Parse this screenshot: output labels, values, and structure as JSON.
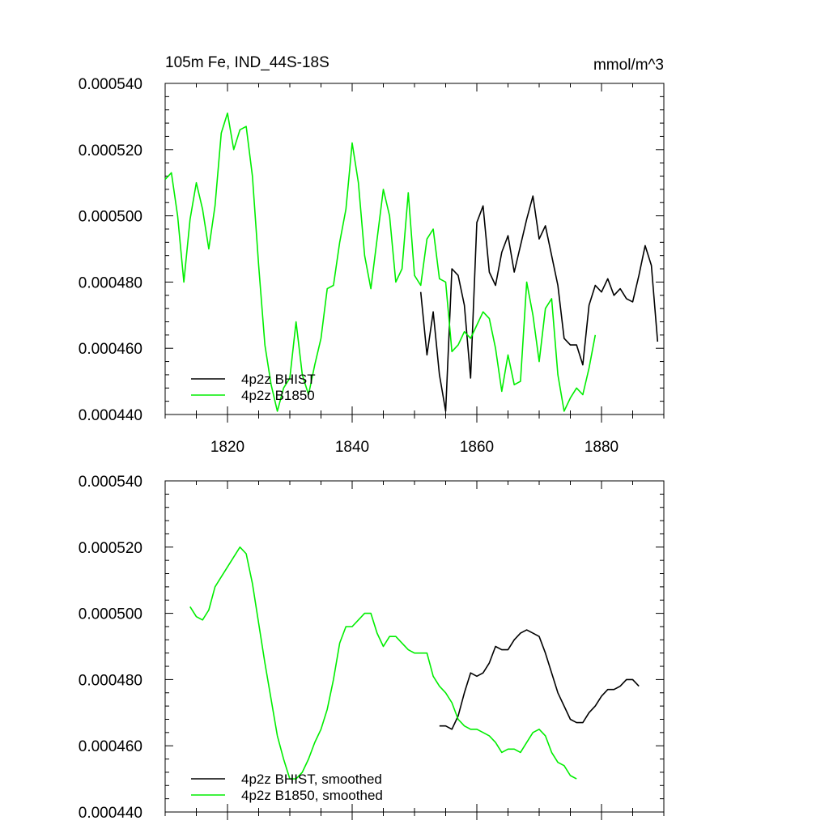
{
  "chart_data": [
    {
      "type": "line",
      "title_left": "105m Fe, IND_44S-18S",
      "title_right": "mmol/m^3",
      "xlim": [
        1810,
        1890
      ],
      "ylim": [
        0.00044,
        0.00054
      ],
      "yticks": [
        "0.000440",
        "0.000460",
        "0.000480",
        "0.000500",
        "0.000520",
        "0.000540"
      ],
      "xticks": [
        "1820",
        "1840",
        "1860",
        "1880"
      ],
      "show_xtick_labels": true,
      "grid": false,
      "legend_position": "bottom-left",
      "series": [
        {
          "name": "4p2z BHIST",
          "color": "#000000",
          "x": [
            1851,
            1852,
            1853,
            1854,
            1855,
            1856,
            1857,
            1858,
            1859,
            1860,
            1861,
            1862,
            1863,
            1864,
            1865,
            1866,
            1867,
            1868,
            1869,
            1870,
            1871,
            1872,
            1873,
            1874,
            1875,
            1876,
            1877,
            1878,
            1879,
            1880,
            1881,
            1882,
            1883,
            1884,
            1885,
            1886,
            1887,
            1888,
            1889
          ],
          "values": [
            0.000477,
            0.000458,
            0.000471,
            0.000452,
            0.000441,
            0.000484,
            0.000482,
            0.000473,
            0.000451,
            0.000498,
            0.000503,
            0.000483,
            0.000479,
            0.000489,
            0.000494,
            0.000483,
            0.000491,
            0.000499,
            0.000506,
            0.000493,
            0.000497,
            0.000488,
            0.000479,
            0.000463,
            0.000461,
            0.000461,
            0.000455,
            0.000473,
            0.000479,
            0.000477,
            0.000481,
            0.000476,
            0.000478,
            0.000475,
            0.000474,
            0.000482,
            0.000491,
            0.000485,
            0.000462
          ]
        },
        {
          "name": "4p2z B1850",
          "color": "#00ee00",
          "x": [
            1810,
            1811,
            1812,
            1813,
            1814,
            1815,
            1816,
            1817,
            1818,
            1819,
            1820,
            1821,
            1822,
            1823,
            1824,
            1825,
            1826,
            1827,
            1828,
            1829,
            1830,
            1831,
            1832,
            1833,
            1834,
            1835,
            1836,
            1837,
            1838,
            1839,
            1840,
            1841,
            1842,
            1843,
            1844,
            1845,
            1846,
            1847,
            1848,
            1849,
            1850,
            1851,
            1852,
            1853,
            1854,
            1855,
            1856,
            1857,
            1858,
            1859,
            1860,
            1861,
            1862,
            1863,
            1864,
            1865,
            1866,
            1867,
            1868,
            1869,
            1870,
            1871,
            1872,
            1873,
            1874,
            1875,
            1876,
            1877,
            1878,
            1879
          ],
          "values": [
            0.000511,
            0.000513,
            0.0005,
            0.00048,
            0.000499,
            0.00051,
            0.000502,
            0.00049,
            0.000503,
            0.000525,
            0.000531,
            0.00052,
            0.000526,
            0.000527,
            0.000512,
            0.000485,
            0.000461,
            0.000449,
            0.000441,
            0.000448,
            0.000451,
            0.000468,
            0.000452,
            0.000446,
            0.000455,
            0.000463,
            0.000478,
            0.000479,
            0.000492,
            0.000502,
            0.000522,
            0.00051,
            0.000488,
            0.000478,
            0.000493,
            0.000508,
            0.0005,
            0.00048,
            0.000484,
            0.000507,
            0.000482,
            0.000479,
            0.000493,
            0.000496,
            0.000481,
            0.00048,
            0.000459,
            0.000461,
            0.000465,
            0.000463,
            0.000467,
            0.000471,
            0.000469,
            0.00046,
            0.000447,
            0.000458,
            0.000449,
            0.00045,
            0.00048,
            0.00047,
            0.000456,
            0.000472,
            0.000475,
            0.000452,
            0.000441,
            0.000445,
            0.000448,
            0.000446,
            0.000454,
            0.000464
          ]
        }
      ]
    },
    {
      "type": "line",
      "xlim": [
        1810,
        1890
      ],
      "ylim": [
        0.00044,
        0.00054
      ],
      "yticks": [
        "0.000440",
        "0.000460",
        "0.000480",
        "0.000500",
        "0.000520",
        "0.000540"
      ],
      "xticks": [
        "1820",
        "1840",
        "1860",
        "1880"
      ],
      "show_xtick_labels": false,
      "grid": false,
      "legend_position": "bottom-left",
      "series": [
        {
          "name": "4p2z BHIST, smoothed",
          "color": "#000000",
          "x": [
            1854,
            1855,
            1856,
            1857,
            1858,
            1859,
            1860,
            1861,
            1862,
            1863,
            1864,
            1865,
            1866,
            1867,
            1868,
            1869,
            1870,
            1871,
            1872,
            1873,
            1874,
            1875,
            1876,
            1877,
            1878,
            1879,
            1880,
            1881,
            1882,
            1883,
            1884,
            1885,
            1886
          ],
          "values": [
            0.000466,
            0.000466,
            0.000465,
            0.000469,
            0.000476,
            0.000482,
            0.000481,
            0.000482,
            0.000485,
            0.00049,
            0.000489,
            0.000489,
            0.000492,
            0.000494,
            0.000495,
            0.000494,
            0.000493,
            0.000488,
            0.000482,
            0.000476,
            0.000472,
            0.000468,
            0.000467,
            0.000467,
            0.00047,
            0.000472,
            0.000475,
            0.000477,
            0.000477,
            0.000478,
            0.00048,
            0.00048,
            0.000478
          ]
        },
        {
          "name": "4p2z B1850, smoothed",
          "color": "#00ee00",
          "x": [
            1814,
            1815,
            1816,
            1817,
            1818,
            1819,
            1820,
            1821,
            1822,
            1823,
            1824,
            1825,
            1826,
            1827,
            1828,
            1829,
            1830,
            1831,
            1832,
            1833,
            1834,
            1835,
            1836,
            1837,
            1838,
            1839,
            1840,
            1841,
            1842,
            1843,
            1844,
            1845,
            1846,
            1847,
            1848,
            1849,
            1850,
            1851,
            1852,
            1853,
            1854,
            1855,
            1856,
            1857,
            1858,
            1859,
            1860,
            1861,
            1862,
            1863,
            1864,
            1865,
            1866,
            1867,
            1868,
            1869,
            1870,
            1871,
            1872,
            1873,
            1874,
            1875,
            1876
          ],
          "values": [
            0.000502,
            0.000499,
            0.000498,
            0.000501,
            0.000508,
            0.000511,
            0.000514,
            0.000517,
            0.00052,
            0.000518,
            0.000509,
            0.000497,
            0.000485,
            0.000474,
            0.000463,
            0.000456,
            0.00045,
            0.00045,
            0.000452,
            0.000456,
            0.000461,
            0.000465,
            0.000471,
            0.00048,
            0.000491,
            0.000496,
            0.000496,
            0.000498,
            0.0005,
            0.0005,
            0.000494,
            0.00049,
            0.000493,
            0.000493,
            0.000491,
            0.000489,
            0.000488,
            0.000488,
            0.000488,
            0.000481,
            0.000478,
            0.000476,
            0.000473,
            0.000468,
            0.000466,
            0.000465,
            0.000465,
            0.000464,
            0.000463,
            0.000461,
            0.000458,
            0.000459,
            0.000459,
            0.000458,
            0.000461,
            0.000464,
            0.000465,
            0.000463,
            0.000458,
            0.000455,
            0.000454,
            0.000451,
            0.00045
          ]
        }
      ]
    }
  ]
}
